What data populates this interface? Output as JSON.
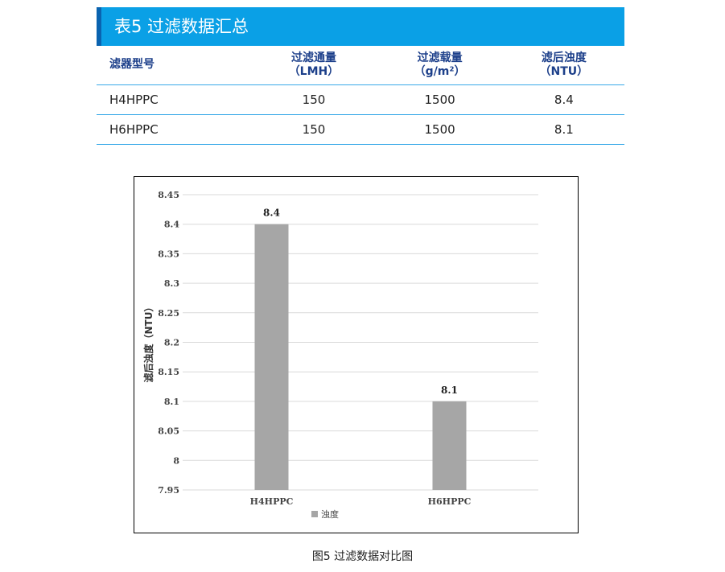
{
  "table": {
    "title": "表5  过滤数据汇总",
    "headers": [
      {
        "line1": "滤器型号",
        "line2": ""
      },
      {
        "line1": "过滤通量",
        "line2": "（LMH）"
      },
      {
        "line1": "过滤载量",
        "line2": "（g/m²）"
      },
      {
        "line1": "滤后浊度",
        "line2": "（NTU）"
      }
    ],
    "rows": [
      [
        "H4HPPC",
        "150",
        "1500",
        "8.4"
      ],
      [
        "H6HPPC",
        "150",
        "1500",
        "8.1"
      ]
    ]
  },
  "chart_data": {
    "type": "bar",
    "categories": [
      "H4HPPC",
      "H6HPPC"
    ],
    "series": [
      {
        "name": "浊度",
        "values": [
          8.4,
          8.1
        ],
        "color": "#a6a6a6"
      }
    ],
    "data_labels": [
      "8.4",
      "8.1"
    ],
    "ylabel": "滤后浊度（NTU）",
    "xlabel": "",
    "ylim": [
      7.95,
      8.45
    ],
    "yticks": [
      "8.45",
      "8.4",
      "8.35",
      "8.3",
      "8.25",
      "8.2",
      "8.15",
      "8.1",
      "8.05",
      "8",
      "7.95"
    ],
    "grid": true,
    "legend": "bottom-center"
  },
  "caption": "图5  过滤数据对比图"
}
